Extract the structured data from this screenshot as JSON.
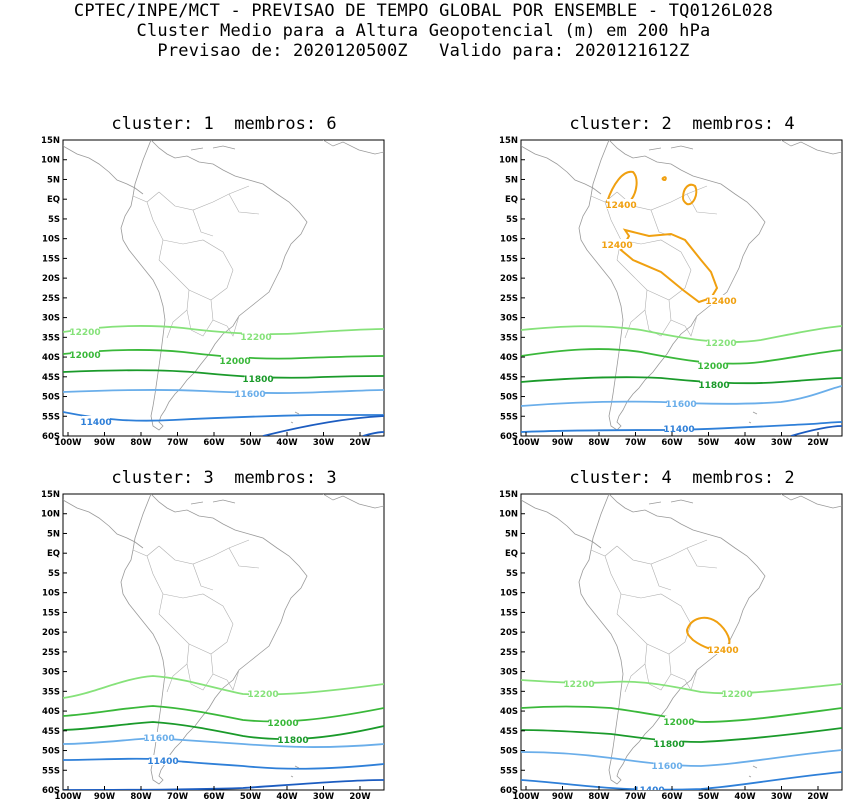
{
  "header": {
    "line1": "CPTEC/INPE/MCT - PREVISAO DE TEMPO GLOBAL POR ENSEMBLE - TQ0126L028",
    "line2": "Cluster Medio para a Altura Geopotencial (m) em 200 hPa",
    "line3": "Previsao de: 2020120500Z   Valido para: 2020121612Z"
  },
  "panels": [
    {
      "title": "cluster: 1  membros: 6"
    },
    {
      "title": "cluster: 2  membros: 4"
    },
    {
      "title": "cluster: 3  membros: 3"
    },
    {
      "title": "cluster: 4  membros: 2"
    }
  ],
  "lat_ticks": [
    "15N",
    "10N",
    "5N",
    "EQ",
    "5S",
    "10S",
    "15S",
    "20S",
    "25S",
    "30S",
    "35S",
    "40S",
    "45S",
    "50S",
    "55S",
    "60S"
  ],
  "lon_ticks": [
    "100W",
    "90W",
    "80W",
    "70W",
    "60W",
    "50W",
    "40W",
    "30W",
    "20W"
  ],
  "contour_levels": {
    "c11400": {
      "label": "11400",
      "color": "#2e7fd8"
    },
    "c11600": {
      "label": "11600",
      "color": "#6aaeea"
    },
    "c11800": {
      "label": "11800",
      "color": "#1a9a2a"
    },
    "c12000": {
      "label": "12000",
      "color": "#3ab83a"
    },
    "c12200": {
      "label": "12200",
      "color": "#86e27a"
    },
    "c12400": {
      "label": "12400",
      "color": "#f0a010"
    },
    "deep": {
      "label": "",
      "color": "#1c5cc0"
    }
  }
}
